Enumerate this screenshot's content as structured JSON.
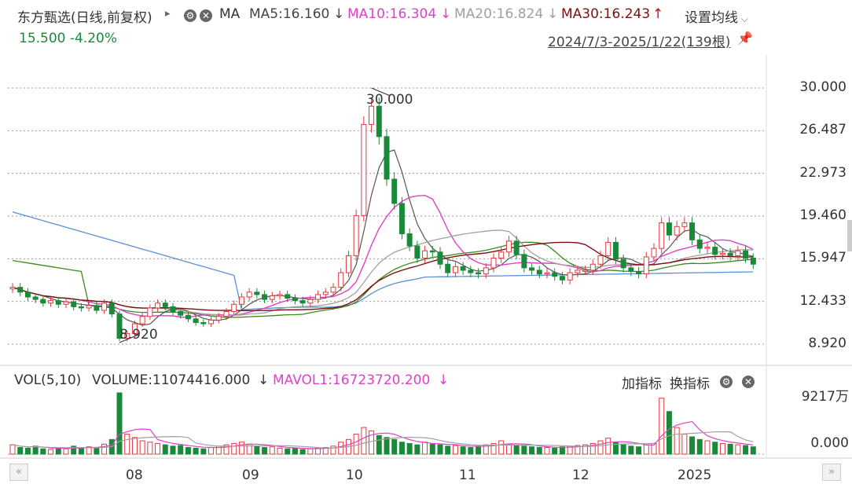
{
  "header": {
    "stock_name": "东方甄选",
    "period": "(日线,前复权)",
    "play_symbol": "▸",
    "ma_label": "MA",
    "ma5": "MA5:16.160",
    "ma10": "MA10:16.304",
    "ma20": "MA20:16.824",
    "ma30": "MA30:16.243",
    "arrow_down": "↓",
    "arrow_up": "↑",
    "settings": "设置均线",
    "price_change": "15.500 -4.20%",
    "range": "2024/7/3-2025/1/22(139根)"
  },
  "colors": {
    "up": "#e0393e",
    "down": "#1a8a3a",
    "ma5": "#555555",
    "ma10": "#e040c8",
    "ma20": "#a0a0a0",
    "ma30": "#7a1010",
    "long_blue": "#5b8fd6",
    "long_green": "#3a8a1a",
    "orange": "#f0a030"
  },
  "volume_header": {
    "vol_label": "VOL(5,10)",
    "volume": "VOLUME:11074416.000",
    "mavol": "MAVOL1:16723720.200",
    "arrow_down": "↓",
    "add_indicator": "加指标",
    "switch_indicator": "换指标"
  },
  "chart_data": {
    "type": "candlestick",
    "y_ticks": [
      "30.000",
      "26.487",
      "22.973",
      "19.460",
      "15.947",
      "12.433",
      "8.920"
    ],
    "y_range": [
      8.92,
      30.0
    ],
    "x_ticks": [
      "08",
      "09",
      "10",
      "11",
      "12",
      "2025"
    ],
    "annotations": {
      "high": "30.000",
      "low": "8.920"
    },
    "volume_ticks": [
      "9217万",
      "0.000"
    ],
    "close_series": [
      13.6,
      13.2,
      12.8,
      12.6,
      12.3,
      12.5,
      12.2,
      12.4,
      12.0,
      11.9,
      12.1,
      11.7,
      12.3,
      11.4,
      9.4,
      9.8,
      10.6,
      11.2,
      11.9,
      12.3,
      12.0,
      11.6,
      11.3,
      11.0,
      10.7,
      10.6,
      10.9,
      11.2,
      11.6,
      12.2,
      12.8,
      13.2,
      13.0,
      12.6,
      12.9,
      13.0,
      12.7,
      12.5,
      12.3,
      12.6,
      13.0,
      13.2,
      13.6,
      14.8,
      16.2,
      19.5,
      27.0,
      28.5,
      26.0,
      22.5,
      20.5,
      18.0,
      17.0,
      16.0,
      16.6,
      16.5,
      15.5,
      14.8,
      15.3,
      15.0,
      14.8,
      14.7,
      15.2,
      16.0,
      16.5,
      17.4,
      16.3,
      15.2,
      15.0,
      14.7,
      14.8,
      14.5,
      14.2,
      14.8,
      15.0,
      15.0,
      15.5,
      16.2,
      17.3,
      15.9,
      15.2,
      14.9,
      14.7,
      16.1,
      16.8,
      18.9,
      17.9,
      18.6,
      18.9,
      17.5,
      16.8,
      16.9,
      16.3,
      16.4,
      16.2,
      16.6,
      16.0,
      15.5
    ],
    "volume_series": [
      14,
      10,
      9,
      12,
      8,
      7,
      9,
      8,
      12,
      10,
      11,
      9,
      15,
      22,
      92,
      30,
      25,
      20,
      18,
      16,
      14,
      12,
      13,
      10,
      9,
      8,
      10,
      12,
      14,
      16,
      18,
      15,
      12,
      10,
      11,
      9,
      8,
      9,
      7,
      8,
      9,
      10,
      12,
      18,
      22,
      30,
      40,
      35,
      28,
      25,
      22,
      18,
      16,
      14,
      18,
      15,
      14,
      12,
      13,
      11,
      10,
      12,
      14,
      16,
      20,
      15,
      13,
      12,
      11,
      10,
      10,
      9,
      11,
      12,
      13,
      14,
      16,
      20,
      24,
      18,
      15,
      12,
      11,
      14,
      16,
      84,
      64,
      40,
      30,
      26,
      22,
      20,
      18,
      16,
      15,
      14,
      13,
      11
    ],
    "ma_series": {
      "MA5": "16.160",
      "MA10": "16.304",
      "MA20": "16.824",
      "MA30": "16.243"
    }
  },
  "nav": {
    "left": "«",
    "right": "»"
  }
}
